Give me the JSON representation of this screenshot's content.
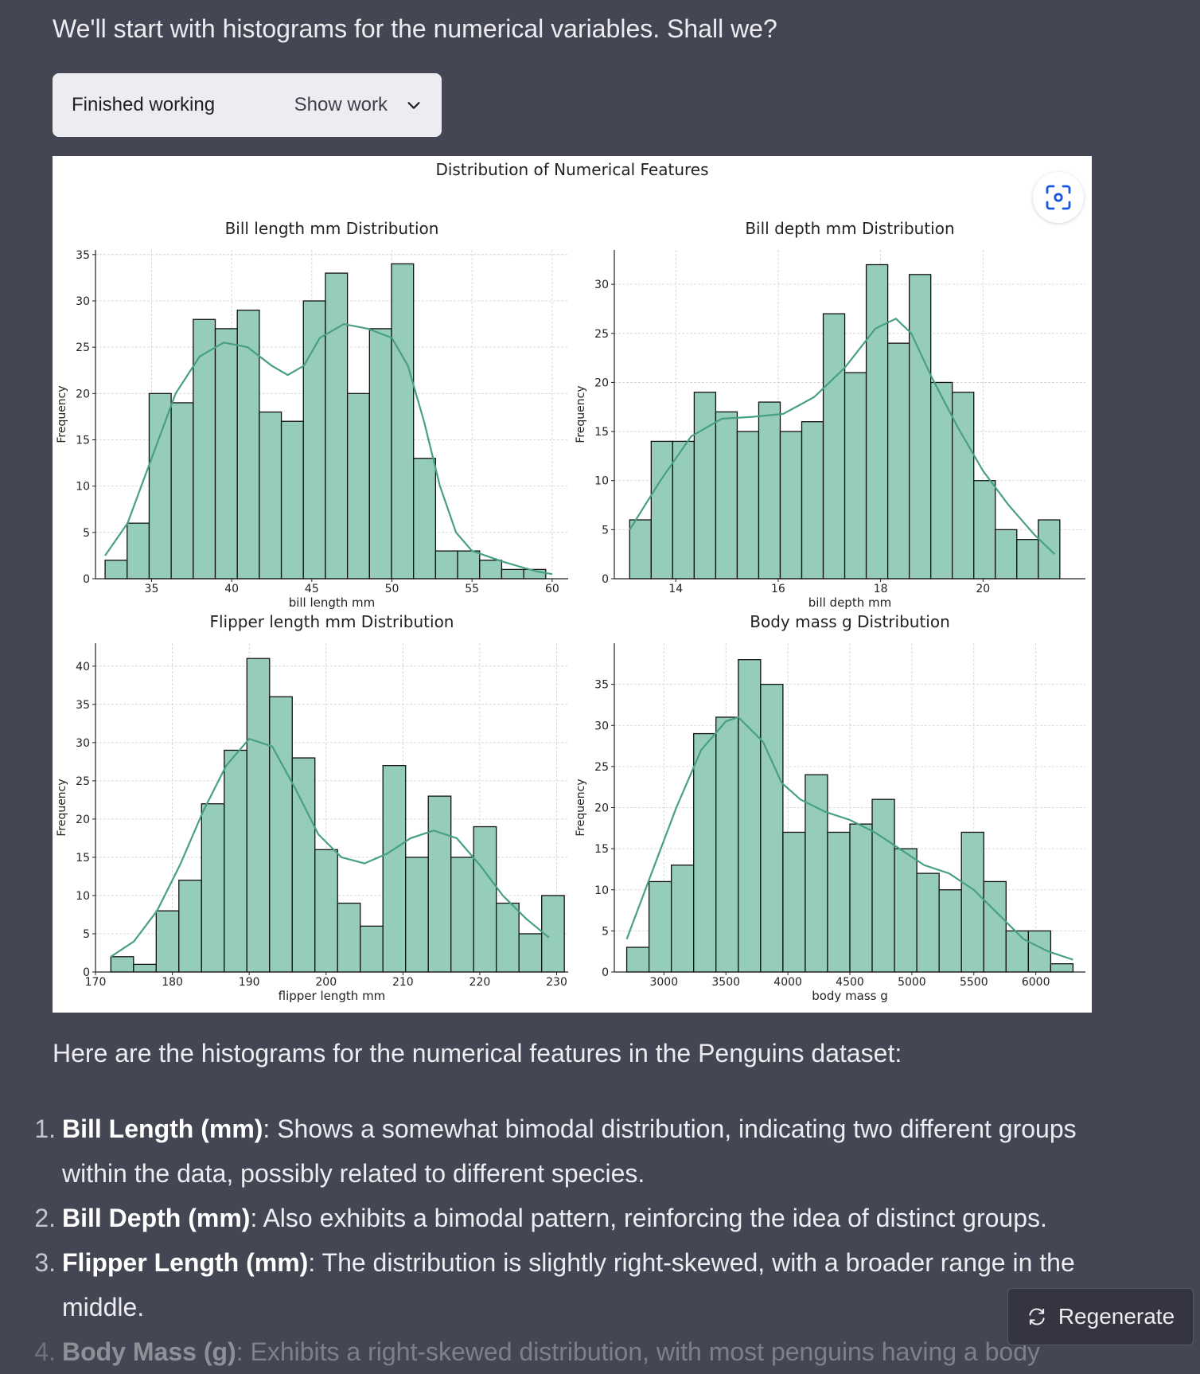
{
  "intro_text": "We'll start with histograms for the numerical variables. Shall we?",
  "work": {
    "status": "Finished working",
    "toggle_label": "Show work",
    "icon": "chevron-down-icon"
  },
  "zoom_icon": "focus-scan-icon",
  "chart_data": {
    "title": "Distribution of Numerical Features",
    "panels": [
      {
        "type": "bar",
        "title": "Bill length mm Distribution",
        "xlabel": "bill length mm",
        "ylabel": "Frequency",
        "xlim": [
          31.5,
          61
        ],
        "ylim": [
          0,
          35.5
        ],
        "xticks": [
          35,
          40,
          45,
          50,
          55,
          60
        ],
        "yticks": [
          0,
          5,
          10,
          15,
          20,
          25,
          30,
          35
        ],
        "bin_start": 32.1,
        "bin_width": 1.375,
        "values": [
          2,
          6,
          20,
          19,
          28,
          27,
          29,
          18,
          17,
          30,
          33,
          20,
          27,
          34,
          13,
          3,
          3,
          2,
          1,
          1
        ],
        "kde": [
          [
            32.1,
            2.5
          ],
          [
            33.5,
            6
          ],
          [
            35,
            13
          ],
          [
            36.5,
            20
          ],
          [
            38,
            24
          ],
          [
            39.5,
            25.5
          ],
          [
            41,
            25
          ],
          [
            42.5,
            23
          ],
          [
            43.5,
            22
          ],
          [
            44.5,
            23
          ],
          [
            45.5,
            26
          ],
          [
            47,
            27.5
          ],
          [
            48.5,
            27
          ],
          [
            50,
            26
          ],
          [
            51,
            23
          ],
          [
            52,
            17
          ],
          [
            53,
            10
          ],
          [
            54,
            5
          ],
          [
            55,
            3
          ],
          [
            57,
            1.8
          ],
          [
            59,
            0.8
          ],
          [
            60,
            0.5
          ]
        ],
        "grid": true
      },
      {
        "type": "bar",
        "title": "Bill depth mm Distribution",
        "xlabel": "bill depth mm",
        "ylabel": "Frequency",
        "xlim": [
          12.8,
          22
        ],
        "ylim": [
          0,
          33.5
        ],
        "xticks": [
          14,
          16,
          18,
          20
        ],
        "yticks": [
          0,
          5,
          10,
          15,
          20,
          25,
          30
        ],
        "bin_start": 13.1,
        "bin_width": 0.42,
        "values": [
          6,
          14,
          14,
          19,
          17,
          15,
          18,
          15,
          16,
          27,
          21,
          32,
          24,
          31,
          20,
          19,
          10,
          5,
          4,
          6
        ],
        "kde": [
          [
            13.1,
            5
          ],
          [
            13.7,
            10
          ],
          [
            14.3,
            14.5
          ],
          [
            14.9,
            16.3
          ],
          [
            15.5,
            16.5
          ],
          [
            16.1,
            16.8
          ],
          [
            16.7,
            18.5
          ],
          [
            17.3,
            21.5
          ],
          [
            17.9,
            25.5
          ],
          [
            18.3,
            26.5
          ],
          [
            18.6,
            25
          ],
          [
            19.0,
            20.5
          ],
          [
            19.5,
            15.5
          ],
          [
            20.0,
            11
          ],
          [
            20.5,
            7.5
          ],
          [
            21.0,
            4.5
          ],
          [
            21.4,
            2.5
          ]
        ],
        "grid": true
      },
      {
        "type": "bar",
        "title": "Flipper length mm Distribution",
        "xlabel": "flipper length mm",
        "ylabel": "Frequency",
        "xlim": [
          170,
          231.5
        ],
        "ylim": [
          0,
          43
        ],
        "xticks": [
          170,
          180,
          190,
          200,
          210,
          220,
          230
        ],
        "yticks": [
          0,
          5,
          10,
          15,
          20,
          25,
          30,
          35,
          40
        ],
        "bin_start": 172,
        "bin_width": 2.95,
        "values": [
          2,
          1,
          8,
          12,
          22,
          29,
          41,
          36,
          28,
          16,
          9,
          6,
          27,
          15,
          23,
          15,
          19,
          9,
          5,
          10
        ],
        "kde": [
          [
            172,
            2
          ],
          [
            175,
            4
          ],
          [
            178,
            8
          ],
          [
            181,
            14
          ],
          [
            184,
            21
          ],
          [
            187,
            27
          ],
          [
            190,
            30.5
          ],
          [
            193,
            29.5
          ],
          [
            196,
            24
          ],
          [
            199,
            18
          ],
          [
            202,
            15
          ],
          [
            205,
            14.2
          ],
          [
            208,
            15.5
          ],
          [
            211,
            17.5
          ],
          [
            214,
            18.5
          ],
          [
            217,
            17.5
          ],
          [
            220,
            14
          ],
          [
            223,
            10
          ],
          [
            226,
            7
          ],
          [
            229,
            4.5
          ]
        ],
        "grid": true
      },
      {
        "type": "bar",
        "title": "Body mass g Distribution",
        "xlabel": "body mass g",
        "ylabel": "Frequency",
        "xlim": [
          2600,
          6400
        ],
        "ylim": [
          0,
          40
        ],
        "xticks": [
          3000,
          3500,
          4000,
          4500,
          5000,
          5500,
          6000
        ],
        "yticks": [
          0,
          5,
          10,
          15,
          20,
          25,
          30,
          35
        ],
        "bin_start": 2700,
        "bin_width": 180,
        "values": [
          3,
          11,
          13,
          29,
          31,
          38,
          35,
          17,
          24,
          17,
          18,
          21,
          15,
          12,
          10,
          17,
          11,
          5,
          5,
          1
        ],
        "kde": [
          [
            2700,
            4
          ],
          [
            2900,
            12
          ],
          [
            3100,
            20
          ],
          [
            3300,
            27
          ],
          [
            3500,
            30.5
          ],
          [
            3600,
            31
          ],
          [
            3800,
            28
          ],
          [
            3950,
            23
          ],
          [
            4100,
            21
          ],
          [
            4300,
            19.5
          ],
          [
            4500,
            18.5
          ],
          [
            4700,
            17
          ],
          [
            4900,
            15
          ],
          [
            5100,
            13
          ],
          [
            5300,
            12
          ],
          [
            5500,
            10
          ],
          [
            5700,
            7
          ],
          [
            5900,
            4
          ],
          [
            6100,
            2.5
          ],
          [
            6300,
            1.5
          ]
        ],
        "grid": true
      }
    ]
  },
  "summary_text": "Here are the histograms for the numerical features in the Penguins dataset:",
  "findings": [
    {
      "number": "1.",
      "title": "Bill Length (mm)",
      "text": ": Shows a somewhat bimodal distribution, indicating two different groups within the data, possibly related to different species."
    },
    {
      "number": "2.",
      "title": "Bill Depth (mm)",
      "text": ": Also exhibits a bimodal pattern, reinforcing the idea of distinct groups."
    },
    {
      "number": "3.",
      "title": "Flipper Length (mm)",
      "text": ": The distribution is slightly right-skewed, with a broader range in the middle."
    },
    {
      "number": "4.",
      "title": "Body Mass (g)",
      "text": ": Exhibits a right-skewed distribution, with most penguins having a body"
    }
  ],
  "regenerate_label": "Regenerate",
  "regenerate_icon": "refresh-icon",
  "colors": {
    "bar": "#96ccbb",
    "kde": "#48a082",
    "background": "#444654"
  }
}
